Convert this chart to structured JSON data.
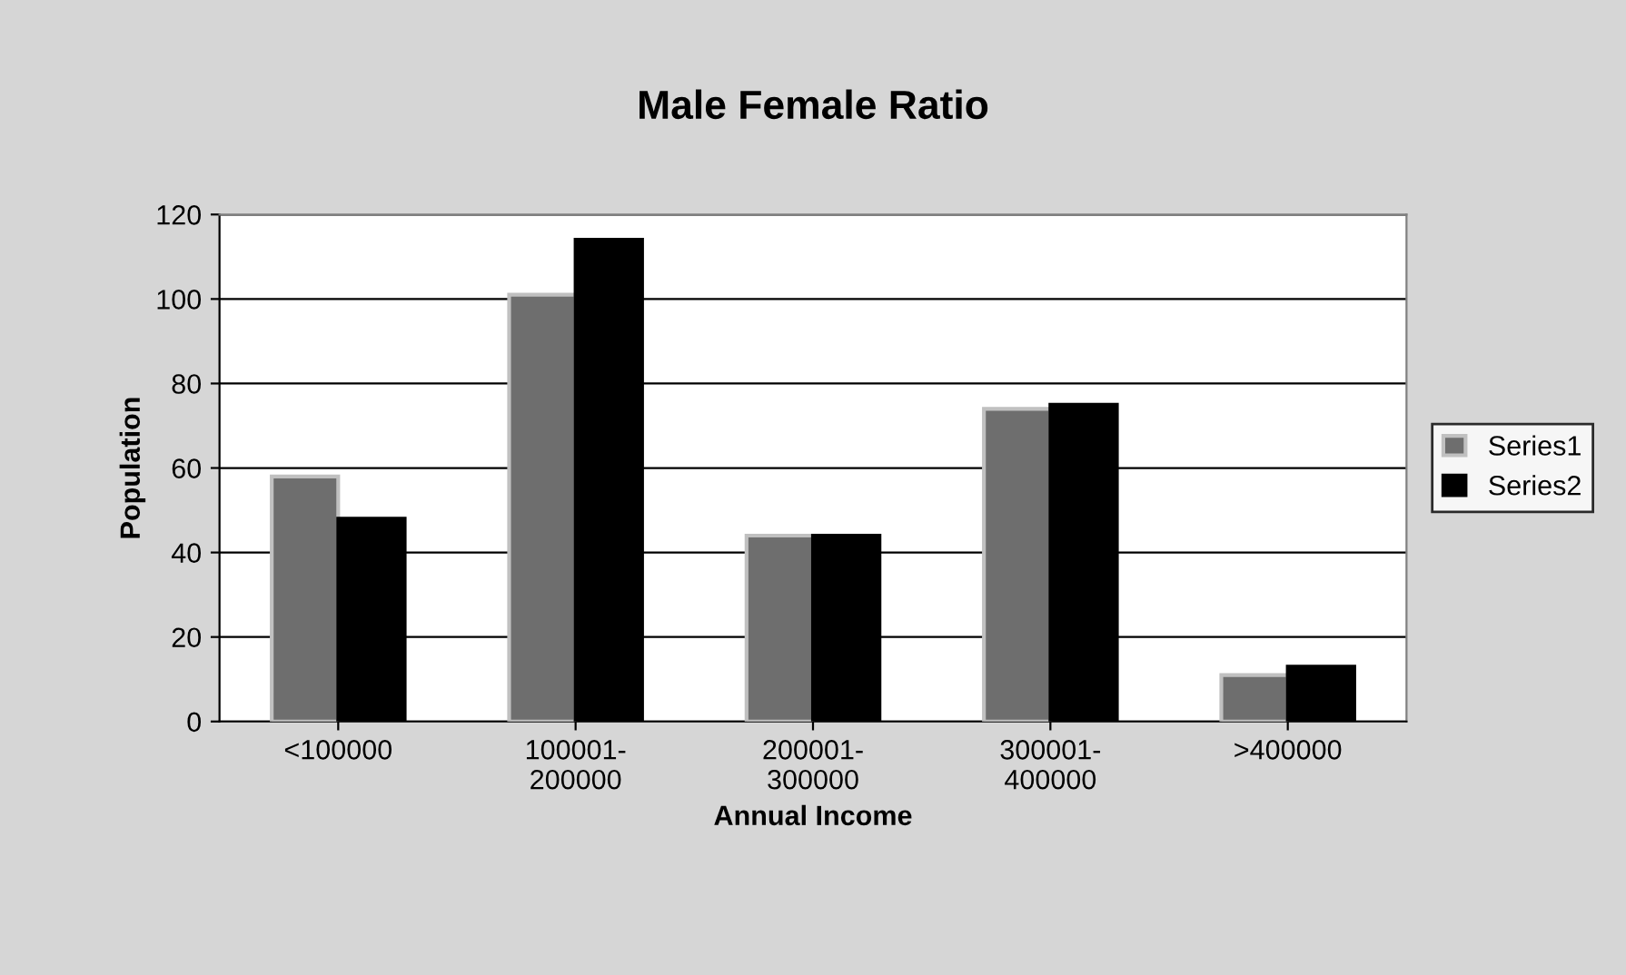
{
  "chart_data": {
    "type": "bar",
    "title": "Male Female Ratio",
    "xlabel": "Annual Income",
    "ylabel": "Population",
    "categories": [
      "<100000",
      "100001-\n200000",
      "200001-\n300000",
      "300001-\n400000",
      ">400000"
    ],
    "series": [
      {
        "name": "Series1",
        "color": "#6e6e6e",
        "values": [
          58,
          101,
          44,
          74,
          11
        ]
      },
      {
        "name": "Series2",
        "color": "#000000",
        "values": [
          48,
          114,
          44,
          75,
          13
        ]
      }
    ],
    "ylim": [
      0,
      120
    ],
    "yticks": [
      0,
      20,
      40,
      60,
      80,
      100,
      120
    ],
    "grid": "y",
    "legend": "right"
  }
}
